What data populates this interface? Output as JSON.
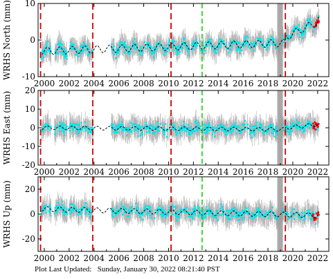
{
  "footer": {
    "label": "Plot Last Updated:",
    "timestamp": "Sunday, January 30, 2022 08:21:40 PST"
  },
  "colors": {
    "raw": "#b3b3b3",
    "filtered": "#00e5ee",
    "model": "#000000",
    "outlier": "#ff0000",
    "break_red": "#cc0000",
    "break_green": "#00cc00"
  },
  "chart_data": [
    {
      "type": "scatter",
      "ylabel": "WRHS North (mm)",
      "xlim": [
        1999.5,
        2022.9
      ],
      "ylim": [
        -10,
        10
      ],
      "yticks": [
        -10,
        0,
        10
      ],
      "xticks": [
        2000,
        2002,
        2004,
        2006,
        2008,
        2010,
        2012,
        2014,
        2016,
        2018,
        2020,
        2022
      ],
      "red_breaks": [
        1999.7,
        2003.9,
        2010.2,
        2019.4
      ],
      "green_breaks": [
        2012.7
      ],
      "offsets": [
        {
          "start": 2019.4,
          "end": 2022.1,
          "level": 4
        }
      ],
      "model": {
        "start_value": -3,
        "end_value": -0.5,
        "seasonal_amplitude": 1
      }
    },
    {
      "type": "scatter",
      "ylabel": "WRHS East (mm)",
      "xlim": [
        1999.5,
        2022.9
      ],
      "ylim": [
        -20,
        20
      ],
      "yticks": [
        -20,
        -10,
        0,
        10,
        20
      ],
      "xticks": [
        2000,
        2002,
        2004,
        2006,
        2008,
        2010,
        2012,
        2014,
        2016,
        2018,
        2020,
        2022
      ],
      "red_breaks": [
        1999.7,
        2003.9,
        2010.2,
        2019.4
      ],
      "green_breaks": [
        2012.7
      ],
      "offsets": [
        {
          "start": 2019.4,
          "end": 2022.1,
          "level": 2
        }
      ],
      "model": {
        "start_value": 0,
        "end_value": -1,
        "seasonal_amplitude": 1
      }
    },
    {
      "type": "scatter",
      "ylabel": "WRHS Up (mm)",
      "xlim": [
        1999.5,
        2022.9
      ],
      "ylim": [
        -30,
        30
      ],
      "yticks": [
        -20,
        0,
        20
      ],
      "xticks": [
        2000,
        2002,
        2004,
        2006,
        2008,
        2010,
        2012,
        2014,
        2016,
        2018,
        2020,
        2022
      ],
      "red_breaks": [
        1999.7,
        2003.9,
        2010.2,
        2019.4
      ],
      "green_breaks": [
        2012.7
      ],
      "offsets": [],
      "model": {
        "start_value": 4,
        "end_value": -1,
        "seasonal_amplitude": 2
      }
    }
  ]
}
